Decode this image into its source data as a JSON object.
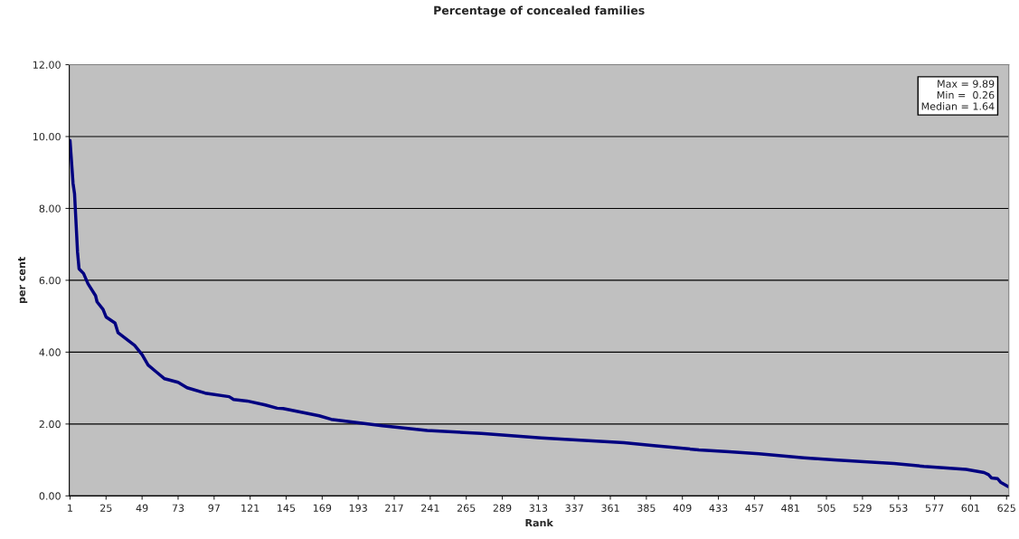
{
  "chart_data": {
    "type": "line",
    "title": "Percentage of concealed families",
    "xlabel": "Rank",
    "ylabel": "per cent",
    "x": [
      1,
      3,
      4,
      6,
      7,
      10,
      13,
      18,
      19,
      23,
      25,
      31,
      33,
      44,
      49,
      53,
      59,
      64,
      73,
      79,
      91,
      107,
      110,
      119,
      131,
      139,
      143,
      167,
      175,
      209,
      239,
      275,
      315,
      370,
      390,
      420,
      440,
      460,
      490,
      510,
      550,
      570,
      598,
      610,
      613,
      615,
      619,
      621,
      626
    ],
    "series": [
      {
        "color": "#000080",
        "values": [
          9.89,
          8.7,
          8.41,
          6.78,
          6.32,
          6.19,
          5.9,
          5.57,
          5.4,
          5.19,
          4.98,
          4.81,
          4.54,
          4.19,
          3.93,
          3.64,
          3.43,
          3.26,
          3.16,
          3.01,
          2.86,
          2.76,
          2.68,
          2.64,
          2.53,
          2.44,
          2.43,
          2.23,
          2.13,
          1.95,
          1.82,
          1.74,
          1.61,
          1.48,
          1.4,
          1.28,
          1.23,
          1.17,
          1.06,
          1.0,
          0.9,
          0.82,
          0.74,
          0.65,
          0.59,
          0.5,
          0.48,
          0.38,
          0.26
        ]
      }
    ],
    "xlim": [
      0.5,
      626.5
    ],
    "xticks": [
      1,
      25,
      49,
      73,
      97,
      121,
      145,
      169,
      193,
      217,
      241,
      265,
      289,
      313,
      337,
      361,
      385,
      409,
      433,
      457,
      481,
      505,
      529,
      553,
      577,
      601,
      625
    ],
    "ylim": [
      0,
      12
    ],
    "yticks": [
      {
        "value": 0,
        "label": "0.00"
      },
      {
        "value": 2,
        "label": "2.00"
      },
      {
        "value": 4,
        "label": "4.00"
      },
      {
        "value": 6,
        "label": "6.00"
      },
      {
        "value": 8,
        "label": "8.00"
      },
      {
        "value": 10,
        "label": "10.00"
      },
      {
        "value": 12,
        "label": "12.00"
      }
    ],
    "grid": "y",
    "legend": false,
    "marker": "none",
    "line_style": "solid",
    "annotations": [
      "Max = 9.89\nMin =  0.26\nMedian = 1.64"
    ]
  }
}
